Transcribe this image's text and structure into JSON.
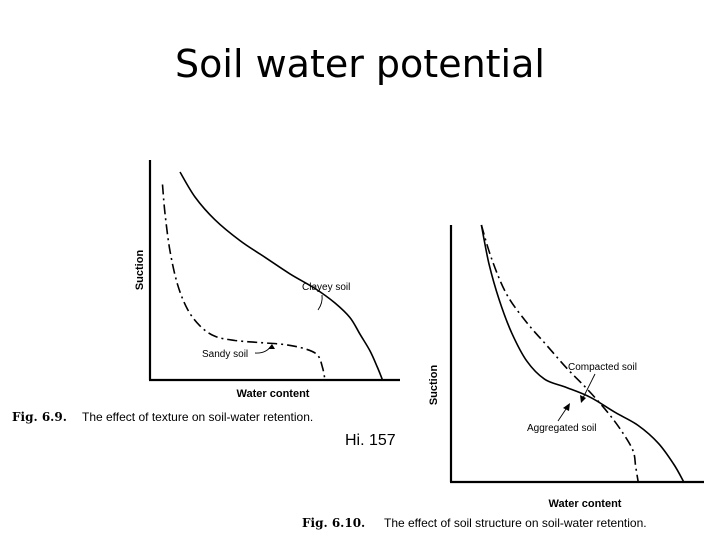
{
  "slide": {
    "title": "Soil water potential",
    "page_ref": "Hi. 157"
  },
  "chart_data": [
    {
      "type": "line",
      "figure": "Fig. 6.9.",
      "caption": "The effect of texture on soil-water retention.",
      "xlabel": "Water content",
      "ylabel": "Suction",
      "xlim": [
        0,
        100
      ],
      "ylim": [
        0,
        100
      ],
      "grid": false,
      "series": [
        {
          "name": "Clayey soil",
          "style": "solid",
          "x": [
            12,
            18,
            26,
            36,
            46,
            56,
            66,
            74,
            80,
            84,
            88,
            91,
            93
          ],
          "y": [
            100,
            88,
            77,
            67,
            59,
            51,
            44,
            37,
            30,
            22,
            14,
            6,
            0
          ]
        },
        {
          "name": "Sandy soil",
          "style": "dash-dot",
          "x": [
            5,
            6,
            8,
            11,
            15,
            20,
            26,
            34,
            44,
            54,
            62,
            67,
            69,
            70
          ],
          "y": [
            94,
            80,
            62,
            46,
            34,
            26,
            21,
            19,
            18,
            17,
            15,
            12,
            6,
            0
          ]
        }
      ]
    },
    {
      "type": "line",
      "figure": "Fig. 6.10.",
      "caption": "The effect of soil structure on soil-water retention.",
      "xlabel": "Water content",
      "ylabel": "Suction",
      "xlim": [
        0,
        100
      ],
      "ylim": [
        0,
        100
      ],
      "grid": false,
      "series": [
        {
          "name": "Compacted soil",
          "style": "dash-dot",
          "x": [
            12,
            16,
            22,
            30,
            38,
            46,
            54,
            62,
            68,
            72,
            73,
            74
          ],
          "y": [
            100,
            87,
            73,
            62,
            53,
            44,
            36,
            27,
            19,
            12,
            6,
            0
          ]
        },
        {
          "name": "Aggregated soil",
          "style": "solid",
          "x": [
            12,
            15,
            19,
            24,
            30,
            37,
            45,
            55,
            65,
            74,
            82,
            88,
            92
          ],
          "y": [
            100,
            85,
            71,
            58,
            47,
            40,
            37,
            33,
            27,
            22,
            15,
            7,
            0
          ]
        }
      ]
    }
  ],
  "labels": {
    "fig1": {
      "clayey": "Clayey soil",
      "sandy": "Sandy soil",
      "xlabel": "Water content",
      "ylabel": "Suction",
      "fig_num": "Fig. 6.9.",
      "caption": "The effect of texture on soil-water retention."
    },
    "fig2": {
      "compacted": "Compacted soil",
      "aggregated": "Aggregated soil",
      "xlabel": "Water content",
      "ylabel": "Suction",
      "fig_num": "Fig. 6.10.",
      "caption": "The effect of soil structure on soil-water retention."
    }
  }
}
